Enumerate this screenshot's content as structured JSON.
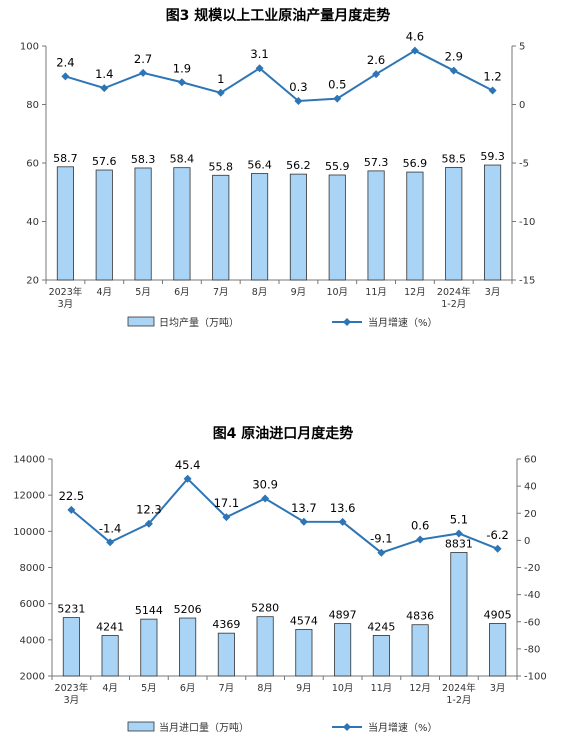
{
  "chart_data": [
    {
      "type": "bar+line",
      "title": "图3  规模以上工业原油产量月度走势",
      "categories": [
        [
          "2023年",
          "3月"
        ],
        [
          "4月"
        ],
        [
          "5月"
        ],
        [
          "6月"
        ],
        [
          "7月"
        ],
        [
          "8月"
        ],
        [
          "9月"
        ],
        [
          "10月"
        ],
        [
          "11月"
        ],
        [
          "12月"
        ],
        [
          "2024年",
          "1-2月"
        ],
        [
          "3月"
        ]
      ],
      "bar_series": {
        "name": "日均产量（万吨）",
        "values": [
          58.7,
          57.6,
          58.3,
          58.4,
          55.8,
          56.4,
          56.2,
          55.9,
          57.3,
          56.9,
          58.5,
          59.3
        ]
      },
      "line_series": {
        "name": "当月增速（%）",
        "values": [
          2.4,
          1.4,
          2.7,
          1.9,
          1.0,
          3.1,
          0.3,
          0.5,
          2.6,
          4.6,
          2.9,
          1.2
        ]
      },
      "left_axis": {
        "min": 20,
        "max": 100,
        "ticks": [
          20,
          40,
          60,
          80,
          100
        ]
      },
      "right_axis": {
        "min": -15,
        "max": 5,
        "ticks": [
          -15,
          -10,
          -5,
          0,
          5
        ]
      },
      "colors": {
        "bar_fill": "#a9d4f5",
        "bar_stroke": "#333333",
        "line": "#2e75b6"
      }
    },
    {
      "type": "bar+line",
      "title": "图4  原油进口月度走势",
      "categories": [
        [
          "2023年",
          "3月"
        ],
        [
          "4月"
        ],
        [
          "5月"
        ],
        [
          "6月"
        ],
        [
          "7月"
        ],
        [
          "8月"
        ],
        [
          "9月"
        ],
        [
          "10月"
        ],
        [
          "11月"
        ],
        [
          "12月"
        ],
        [
          "2024年",
          "1-2月"
        ],
        [
          "3月"
        ]
      ],
      "bar_series": {
        "name": "当月进口量（万吨）",
        "values": [
          5231,
          4241,
          5144,
          5206,
          4369,
          5280,
          4574,
          4897,
          4245,
          4836,
          8831,
          4905
        ]
      },
      "line_series": {
        "name": "当月增速（%）",
        "values": [
          22.5,
          -1.4,
          12.3,
          45.4,
          17.1,
          30.9,
          13.7,
          13.6,
          -9.1,
          0.6,
          5.1,
          -6.2
        ]
      },
      "left_axis": {
        "min": 2000,
        "max": 14000,
        "ticks": [
          2000,
          4000,
          6000,
          8000,
          10000,
          12000,
          14000
        ]
      },
      "right_axis": {
        "min": -100,
        "max": 60,
        "ticks": [
          -100,
          -80,
          -60,
          -40,
          -20,
          0,
          20,
          40,
          60
        ]
      },
      "colors": {
        "bar_fill": "#a9d4f5",
        "bar_stroke": "#333333",
        "line": "#2e75b6"
      }
    }
  ]
}
